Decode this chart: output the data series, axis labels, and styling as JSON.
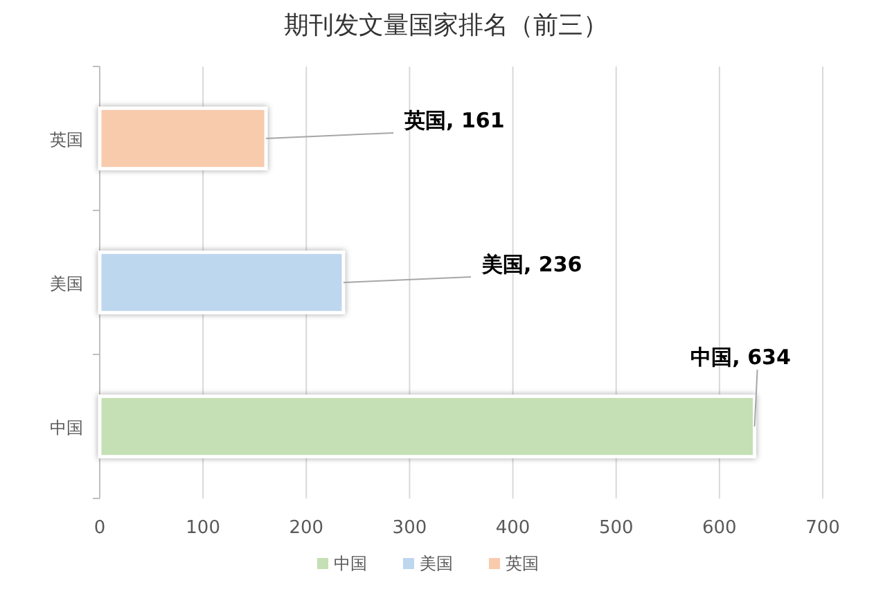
{
  "chart_data": {
    "type": "bar",
    "orientation": "horizontal",
    "title": "期刊发文量国家排名（前三）",
    "categories": [
      "英国",
      "美国",
      "中国"
    ],
    "series": [
      {
        "name": "中国",
        "color": "#c5e0b4",
        "values": [
          null,
          null,
          634
        ],
        "value_labels": [
          null,
          null,
          "中国, 634"
        ]
      },
      {
        "name": "美国",
        "color": "#bdd7ee",
        "values": [
          null,
          236,
          null
        ],
        "value_labels": [
          null,
          "美国, 236",
          null
        ]
      },
      {
        "name": "英国",
        "color": "#f8cbad",
        "values": [
          161,
          null,
          null
        ],
        "value_labels": [
          "英国, 161",
          null,
          null
        ]
      }
    ],
    "xlim": [
      0,
      700
    ],
    "xticks": [
      0,
      100,
      200,
      300,
      400,
      500,
      600,
      700
    ],
    "grid": "x",
    "legend": "bottom"
  }
}
